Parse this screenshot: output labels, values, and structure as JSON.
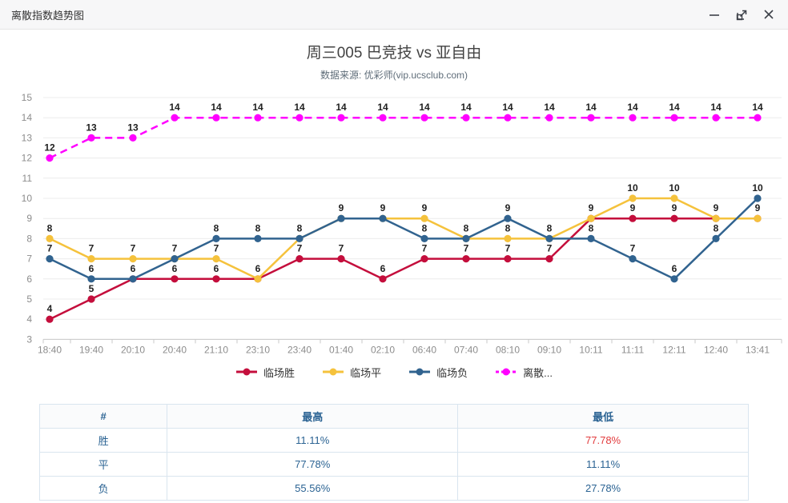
{
  "window": {
    "title": "离散指数趋势图"
  },
  "chart": {
    "title": "周三005 巴竞技 vs 亚自由",
    "subtitle": "数据来源: 优彩师(vip.ucsclub.com)"
  },
  "chart_data": {
    "type": "line",
    "x": [
      "18:40",
      "19:40",
      "20:10",
      "20:40",
      "21:10",
      "23:10",
      "23:40",
      "01:40",
      "02:10",
      "06:40",
      "07:40",
      "08:10",
      "09:10",
      "10:11",
      "11:11",
      "12:11",
      "12:40",
      "13:41"
    ],
    "ylim": [
      3,
      15
    ],
    "yticks": [
      3,
      4,
      5,
      6,
      7,
      8,
      9,
      10,
      11,
      12,
      13,
      14,
      15
    ],
    "grid": "horizontal",
    "legend_position": "bottom",
    "series": [
      {
        "key": "win",
        "name": "临场胜",
        "color": "#c40e3c",
        "dashed": false,
        "values": [
          4,
          5,
          6,
          6,
          6,
          6,
          7,
          7,
          6,
          7,
          7,
          7,
          7,
          9,
          9,
          9,
          9,
          9
        ]
      },
      {
        "key": "draw",
        "name": "临场平",
        "color": "#f5c23c",
        "dashed": false,
        "values": [
          8,
          7,
          7,
          7,
          7,
          6,
          8,
          9,
          9,
          9,
          8,
          8,
          8,
          9,
          10,
          10,
          9,
          9
        ]
      },
      {
        "key": "lose",
        "name": "临场负",
        "color": "#31638f",
        "dashed": false,
        "values": [
          7,
          6,
          6,
          7,
          8,
          8,
          8,
          9,
          9,
          8,
          8,
          9,
          8,
          8,
          7,
          6,
          8,
          10
        ]
      },
      {
        "key": "dispersion",
        "name": "离散...",
        "color": "#ff00ff",
        "dashed": true,
        "values": [
          12,
          13,
          13,
          14,
          14,
          14,
          14,
          14,
          14,
          14,
          14,
          14,
          14,
          14,
          14,
          14,
          14,
          14
        ]
      }
    ]
  },
  "table": {
    "headers": [
      "#",
      "最高",
      "最低"
    ],
    "rows": [
      {
        "label": "胜",
        "high": "11.11%",
        "low": "77.78%",
        "low_color": "#e23b3d"
      },
      {
        "label": "平",
        "high": "77.78%",
        "low": "11.11%"
      },
      {
        "label": "负",
        "high": "55.56%",
        "low": "27.78%"
      }
    ]
  },
  "colors": {
    "axis_text": "#8c8c8c",
    "grid_line": "#ececec",
    "axis_line": "#c9c9c9",
    "point_label": "#1f1f1f",
    "table_text": "#2b6393"
  }
}
